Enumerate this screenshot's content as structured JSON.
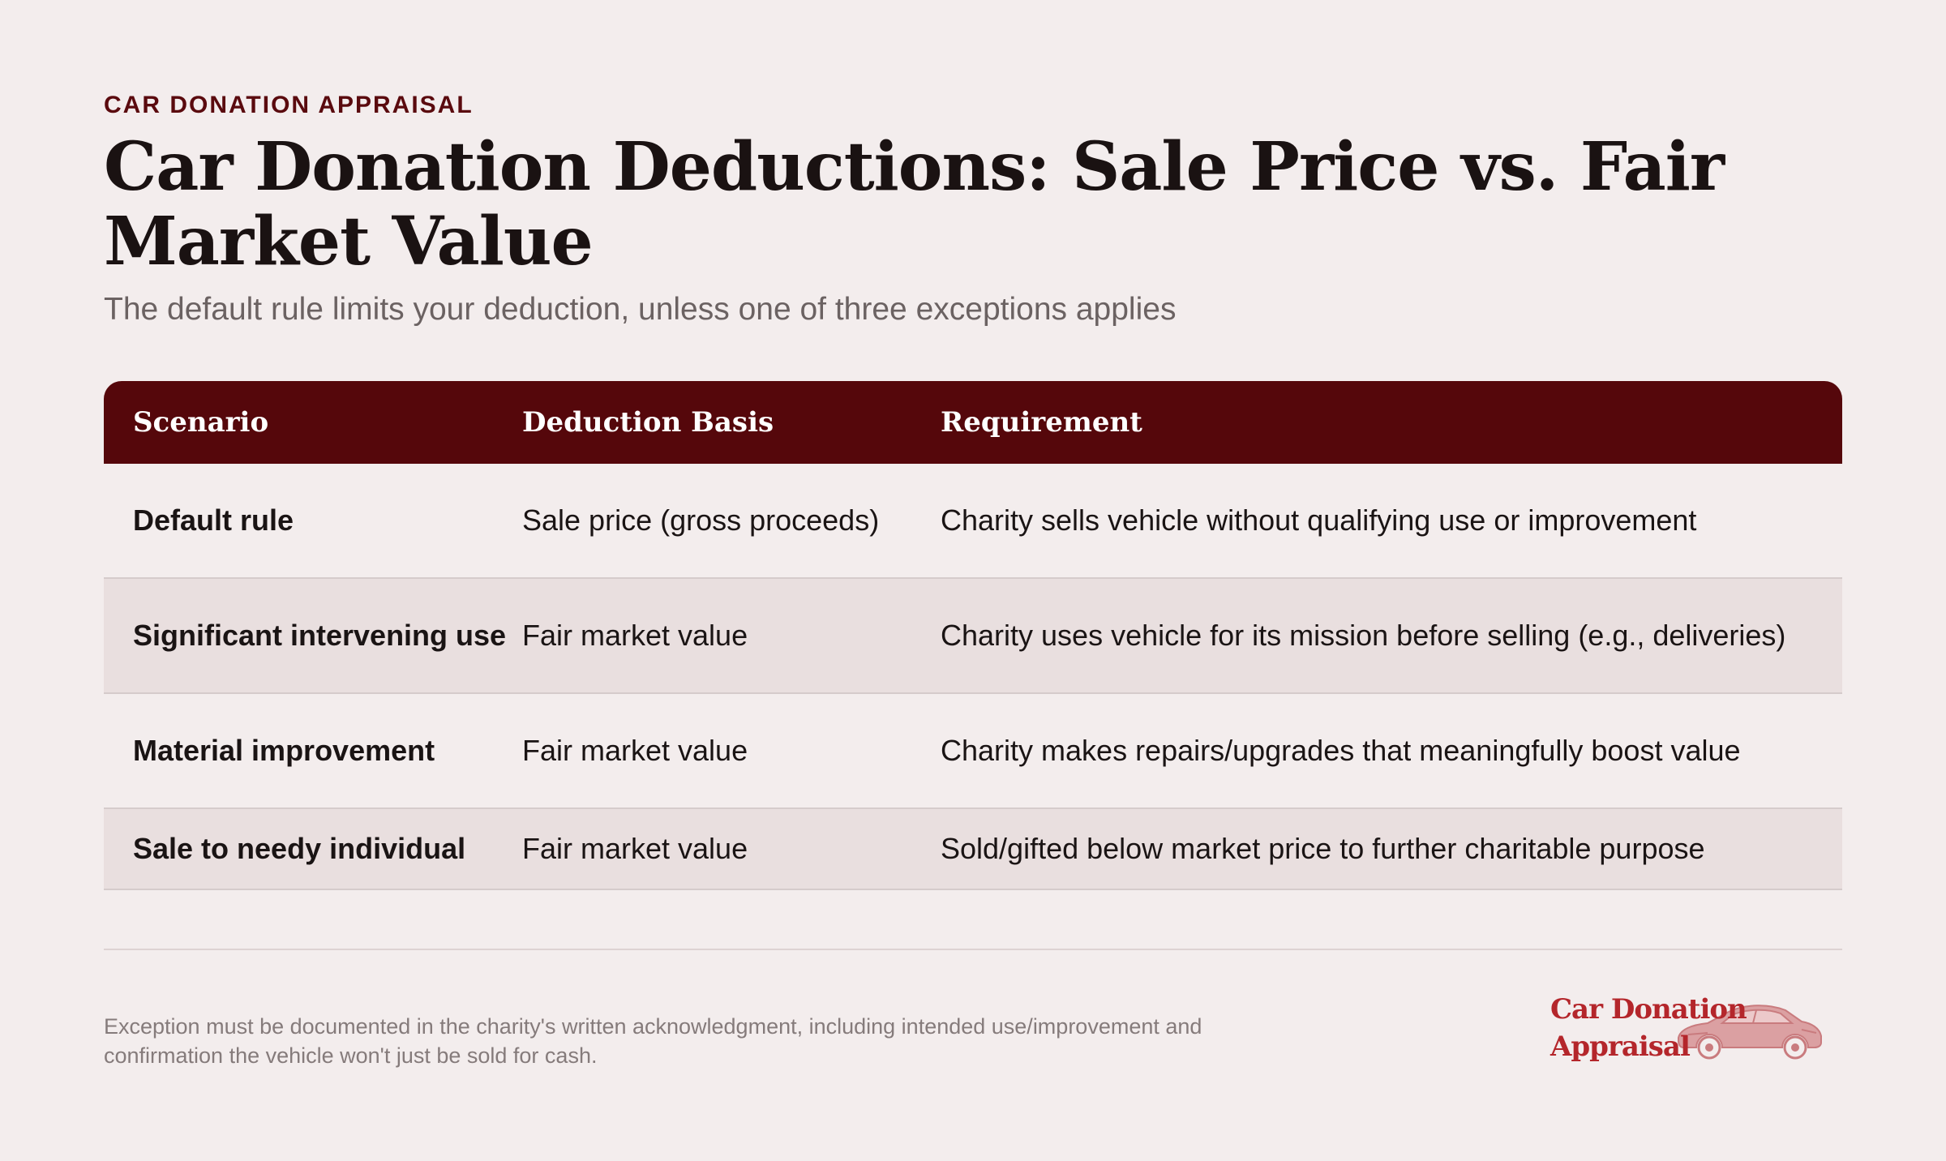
{
  "header": {
    "eyebrow": "CAR DONATION APPRAISAL",
    "title": "Car Donation Deductions: Sale Price vs. Fair Market Value",
    "subtitle": "The default rule limits your deduction, unless one of three exceptions applies"
  },
  "table": {
    "columns": [
      "Scenario",
      "Deduction Basis",
      "Requirement"
    ],
    "rows": [
      {
        "scenario": "Default rule",
        "basis": "Sale price (gross proceeds)",
        "requirement": "Charity sells vehicle without qualifying use or improvement"
      },
      {
        "scenario": "Significant intervening use",
        "basis": "Fair market value",
        "requirement": "Charity uses vehicle for its mission before selling (e.g., deliveries)"
      },
      {
        "scenario": "Material improvement",
        "basis": "Fair market value",
        "requirement": "Charity makes repairs/upgrades that meaningfully boost value"
      },
      {
        "scenario": "Sale to needy individual",
        "basis": "Fair market value",
        "requirement": "Sold/gifted below market price to further charitable purpose"
      }
    ]
  },
  "footer": {
    "note": "Exception must be documented in the charity's written acknowledgment, including intended use/improvement and confirmation the vehicle won't just be sold for cash.",
    "logo_line1": "Car Donation",
    "logo_line2": "Appraisal",
    "logo_icon": "sports-car-icon"
  },
  "colors": {
    "background": "#f3eded",
    "header_bg": "#55070b",
    "accent": "#5a0a0e",
    "row_alt": "#e9dfdf",
    "logo_red": "#b4262b"
  }
}
